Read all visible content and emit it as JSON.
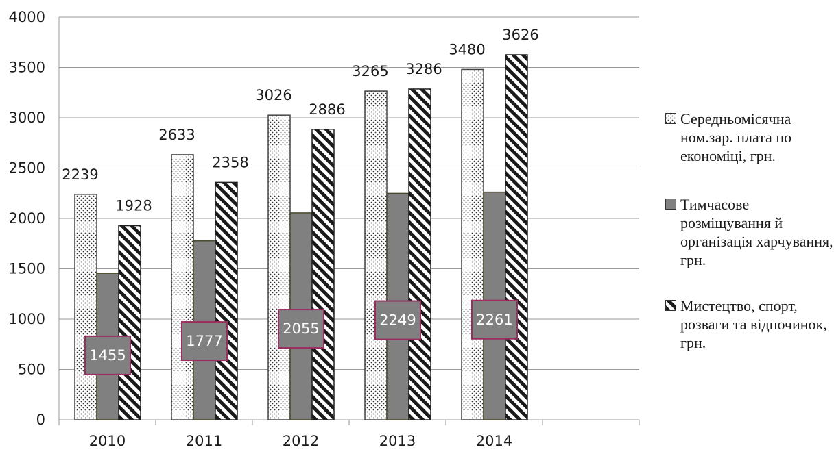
{
  "chart_data": {
    "type": "bar",
    "categories": [
      "2010",
      "2011",
      "2012",
      "2013",
      "2014"
    ],
    "series": [
      {
        "name": "Середньомісячна ном.зар. плата по економіці, грн.",
        "values": [
          2239,
          2633,
          3026,
          3265,
          3480
        ],
        "pattern": "dots",
        "color": "#ffffff"
      },
      {
        "name": "Тимчасове розміщування й організація харчування, грн.",
        "values": [
          1455,
          1777,
          2055,
          2249,
          2261
        ],
        "pattern": "solid",
        "color": "#808080"
      },
      {
        "name": "Мистецтво, спорт, розваги та відпочинок, грн.",
        "values": [
          1928,
          2358,
          2886,
          3286,
          3626
        ],
        "pattern": "diagonal-stripes",
        "color": "#ffffff"
      }
    ],
    "ylim": [
      0,
      4000
    ],
    "yticks": [
      0,
      500,
      1000,
      1500,
      2000,
      2500,
      3000,
      3500,
      4000
    ],
    "grid": true,
    "legend": "right",
    "label_box_color": "#9b2c5f",
    "title": "",
    "xlabel": "",
    "ylabel": ""
  }
}
